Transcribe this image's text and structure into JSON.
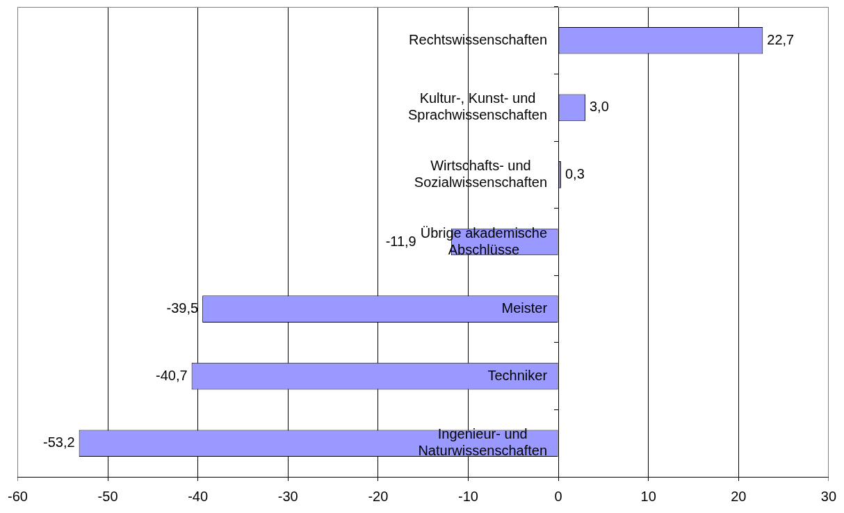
{
  "chart_data": {
    "type": "bar",
    "orientation": "horizontal",
    "categories": [
      "Rechtswissenschaften",
      "Kultur-, Kunst- und Sprachwissenschaften",
      "Wirtschafts- und Sozialwissenschaften",
      "Übrige akademische Abschlüsse",
      "Meister",
      "Techniker",
      "Ingenieur- und Naturwissenschaften"
    ],
    "values": [
      22.7,
      3.0,
      0.3,
      -11.9,
      -39.5,
      -40.7,
      -53.2
    ],
    "value_labels": [
      "22,7",
      "3,0",
      "0,3",
      "-11,9",
      "-39,5",
      "-40,7",
      "-53,2"
    ],
    "color": "#9999ff",
    "xlim": [
      -60,
      30
    ],
    "xticks": [
      -60,
      -50,
      -40,
      -30,
      -20,
      -10,
      0,
      10,
      20,
      30
    ],
    "grid": "x",
    "legend": false
  }
}
